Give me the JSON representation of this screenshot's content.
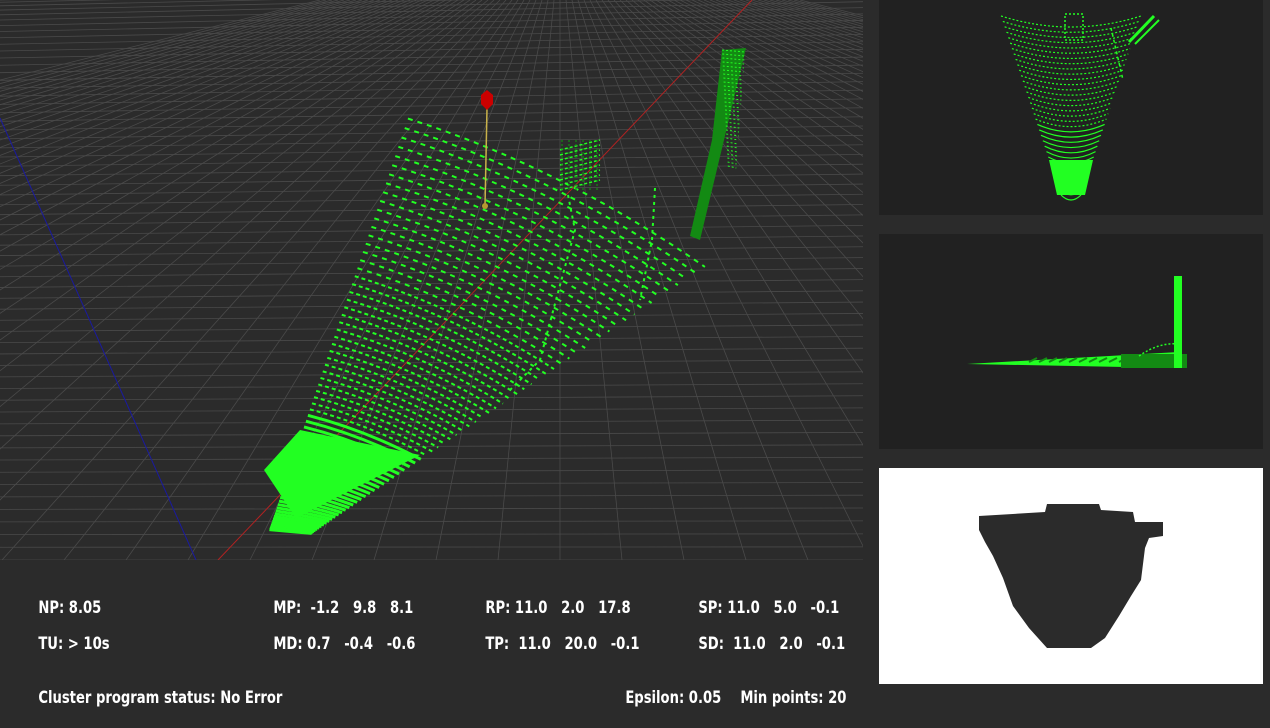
{
  "colors": {
    "background": "#2b2b2b",
    "grid": "#4a4a4a",
    "points": "#22ff22",
    "points_dark": "#138a13",
    "x_axis": "#b22222",
    "y_axis": "#1a1aa0",
    "marker": "#cc0000",
    "panel_bg": "#212121",
    "mask_fg": "#2b2b2b",
    "mask_bg": "#ffffff"
  },
  "stats": {
    "np": {
      "label": "NP:",
      "value": "8.05"
    },
    "tu": {
      "label": "TU:",
      "value": "> 10s"
    },
    "mp": {
      "label": "MP:",
      "value": " -1.2   9.8   8.1"
    },
    "md": {
      "label": "MD:",
      "value": "0.7   -0.4   -0.6"
    },
    "rp": {
      "label": "RP:",
      "value": "11.0   2.0   17.8"
    },
    "tp": {
      "label": "TP:",
      "value": " 11.0   20.0   -0.1"
    },
    "sp": {
      "label": "SP:",
      "value": "11.0   5.0   -0.1"
    },
    "sd": {
      "label": "SD:",
      "value": " 11.0   2.0   -0.1"
    }
  },
  "cluster_status": {
    "label": "Cluster program status:",
    "value": "No Error"
  },
  "epsilon": {
    "label": "Epsilon:",
    "value": "0.05"
  },
  "min_points": {
    "label": "Min points:",
    "value": "20"
  }
}
